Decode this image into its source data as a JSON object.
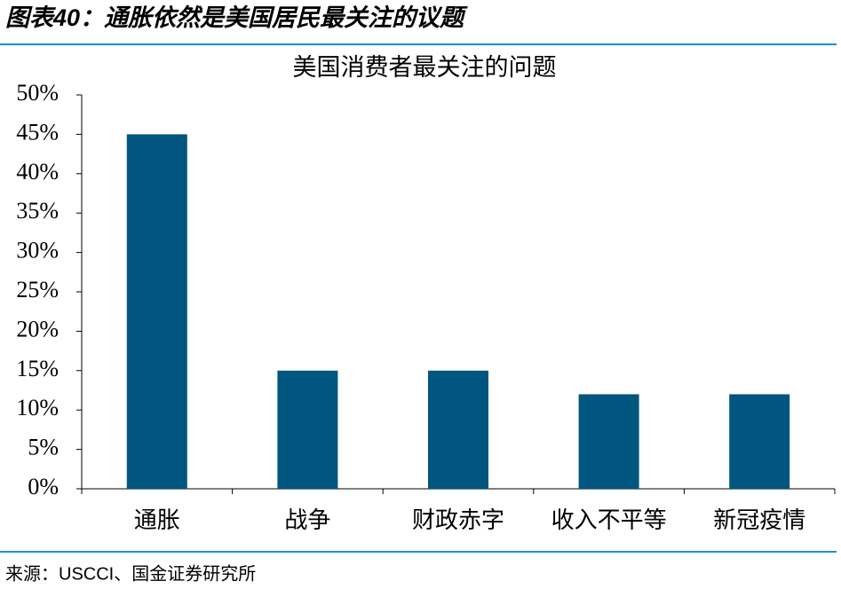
{
  "header": {
    "title": "图表40：通胀依然是美国居民最关注的议题"
  },
  "chart_data": {
    "type": "bar",
    "title": "美国消费者最关注的问题",
    "categories": [
      "通胀",
      "战争",
      "财政赤字",
      "收入不平等",
      "新冠疫情"
    ],
    "values": [
      45,
      15,
      15,
      12,
      12
    ],
    "color": "#00567f",
    "ylim": [
      0,
      50
    ],
    "yticks": [
      {
        "value": 0,
        "label": "0%"
      },
      {
        "value": 5,
        "label": "5%"
      },
      {
        "value": 10,
        "label": "10%"
      },
      {
        "value": 15,
        "label": "15%"
      },
      {
        "value": 20,
        "label": "20%"
      },
      {
        "value": 25,
        "label": "25%"
      },
      {
        "value": 30,
        "label": "30%"
      },
      {
        "value": 35,
        "label": "35%"
      },
      {
        "value": 40,
        "label": "40%"
      },
      {
        "value": 45,
        "label": "45%"
      },
      {
        "value": 50,
        "label": "50%"
      }
    ],
    "grid": false
  },
  "footer": {
    "source": "来源：USCCI、国金证券研究所"
  }
}
